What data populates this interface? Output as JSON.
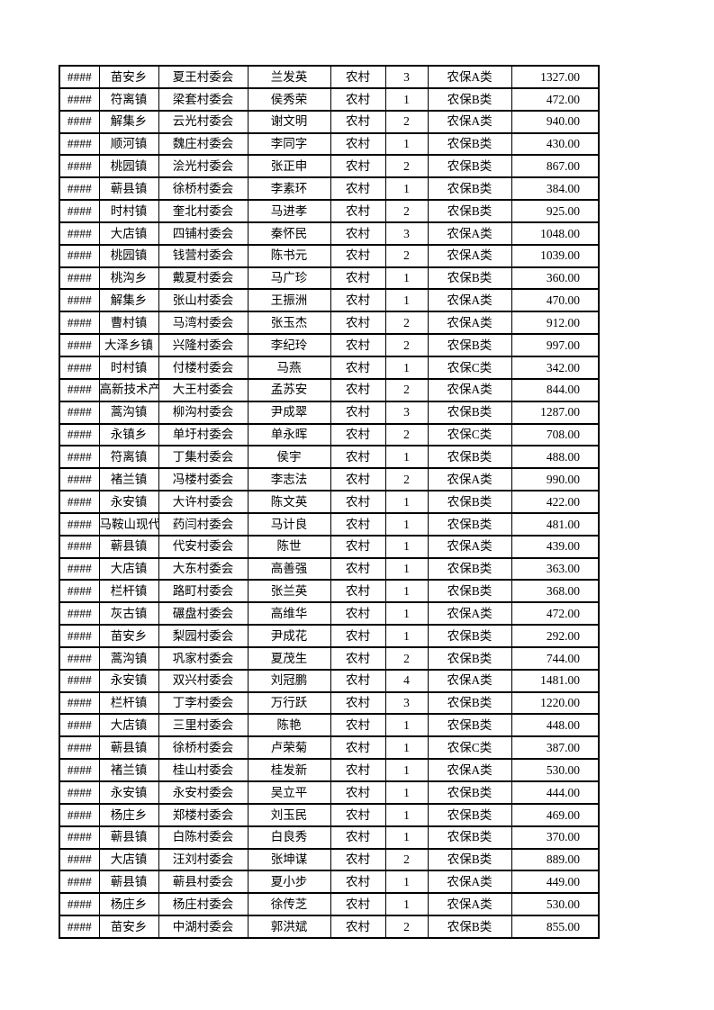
{
  "page": {
    "background": "#ffffff",
    "text_color": "#000000",
    "border_color": "#000000"
  },
  "table": {
    "overflow_marker": "####",
    "columns": [
      "overflow",
      "town",
      "village",
      "name",
      "area_type",
      "count",
      "category",
      "amount"
    ],
    "rows": [
      {
        "overflow": "####",
        "town": "苗安乡",
        "village": "夏王村委会",
        "name": "兰发英",
        "area_type": "农村",
        "count": "3",
        "category": "农保A类",
        "amount": "1327.00"
      },
      {
        "overflow": "####",
        "town": "符离镇",
        "village": "梁套村委会",
        "name": "侯秀荣",
        "area_type": "农村",
        "count": "1",
        "category": "农保B类",
        "amount": "472.00"
      },
      {
        "overflow": "####",
        "town": "解集乡",
        "village": "云光村委会",
        "name": "谢文明",
        "area_type": "农村",
        "count": "2",
        "category": "农保A类",
        "amount": "940.00"
      },
      {
        "overflow": "####",
        "town": "顺河镇",
        "village": "魏庄村委会",
        "name": "李同字",
        "area_type": "农村",
        "count": "1",
        "category": "农保B类",
        "amount": "430.00"
      },
      {
        "overflow": "####",
        "town": "桃园镇",
        "village": "浍光村委会",
        "name": "张正申",
        "area_type": "农村",
        "count": "2",
        "category": "农保B类",
        "amount": "867.00"
      },
      {
        "overflow": "####",
        "town": "蕲县镇",
        "village": "徐桥村委会",
        "name": "李素环",
        "area_type": "农村",
        "count": "1",
        "category": "农保B类",
        "amount": "384.00"
      },
      {
        "overflow": "####",
        "town": "时村镇",
        "village": "奎北村委会",
        "name": "马进孝",
        "area_type": "农村",
        "count": "2",
        "category": "农保B类",
        "amount": "925.00"
      },
      {
        "overflow": "####",
        "town": "大店镇",
        "village": "四铺村委会",
        "name": "秦怀民",
        "area_type": "农村",
        "count": "3",
        "category": "农保A类",
        "amount": "1048.00"
      },
      {
        "overflow": "####",
        "town": "桃园镇",
        "village": "钱营村委会",
        "name": "陈书元",
        "area_type": "农村",
        "count": "2",
        "category": "农保A类",
        "amount": "1039.00"
      },
      {
        "overflow": "####",
        "town": "桃沟乡",
        "village": "戴夏村委会",
        "name": "马广珍",
        "area_type": "农村",
        "count": "1",
        "category": "农保B类",
        "amount": "360.00"
      },
      {
        "overflow": "####",
        "town": "解集乡",
        "village": "张山村委会",
        "name": "王振洲",
        "area_type": "农村",
        "count": "1",
        "category": "农保A类",
        "amount": "470.00"
      },
      {
        "overflow": "####",
        "town": "曹村镇",
        "village": "马湾村委会",
        "name": "张玉杰",
        "area_type": "农村",
        "count": "2",
        "category": "农保A类",
        "amount": "912.00"
      },
      {
        "overflow": "####",
        "town": "大泽乡镇",
        "village": "兴隆村委会",
        "name": "李纪玲",
        "area_type": "农村",
        "count": "2",
        "category": "农保B类",
        "amount": "997.00"
      },
      {
        "overflow": "####",
        "town": "时村镇",
        "village": "付楼村委会",
        "name": "马燕",
        "area_type": "农村",
        "count": "1",
        "category": "农保C类",
        "amount": "342.00"
      },
      {
        "overflow": "####",
        "town": "高新技术产业园",
        "village": "大王村委会",
        "name": "孟苏安",
        "area_type": "农村",
        "count": "2",
        "category": "农保A类",
        "amount": "844.00"
      },
      {
        "overflow": "####",
        "town": "蒿沟镇",
        "village": "柳沟村委会",
        "name": "尹成翠",
        "area_type": "农村",
        "count": "3",
        "category": "农保B类",
        "amount": "1287.00"
      },
      {
        "overflow": "####",
        "town": "永镇乡",
        "village": "单圩村委会",
        "name": "单永晖",
        "area_type": "农村",
        "count": "2",
        "category": "农保C类",
        "amount": "708.00"
      },
      {
        "overflow": "####",
        "town": "符离镇",
        "village": "丁集村委会",
        "name": "侯宇",
        "area_type": "农村",
        "count": "1",
        "category": "农保B类",
        "amount": "488.00"
      },
      {
        "overflow": "####",
        "town": "褚兰镇",
        "village": "冯楼村委会",
        "name": "李志法",
        "area_type": "农村",
        "count": "2",
        "category": "农保A类",
        "amount": "990.00"
      },
      {
        "overflow": "####",
        "town": "永安镇",
        "village": "大许村委会",
        "name": "陈文英",
        "area_type": "农村",
        "count": "1",
        "category": "农保B类",
        "amount": "422.00"
      },
      {
        "overflow": "####",
        "town": "马鞍山现代产业园",
        "village": "药闫村委会",
        "name": "马计良",
        "area_type": "农村",
        "count": "1",
        "category": "农保B类",
        "amount": "481.00"
      },
      {
        "overflow": "####",
        "town": "蕲县镇",
        "village": "代安村委会",
        "name": "陈世",
        "area_type": "农村",
        "count": "1",
        "category": "农保A类",
        "amount": "439.00"
      },
      {
        "overflow": "####",
        "town": "大店镇",
        "village": "大东村委会",
        "name": "高善强",
        "area_type": "农村",
        "count": "1",
        "category": "农保B类",
        "amount": "363.00"
      },
      {
        "overflow": "####",
        "town": "栏杆镇",
        "village": "路町村委会",
        "name": "张兰英",
        "area_type": "农村",
        "count": "1",
        "category": "农保B类",
        "amount": "368.00"
      },
      {
        "overflow": "####",
        "town": "灰古镇",
        "village": "碾盘村委会",
        "name": "高维华",
        "area_type": "农村",
        "count": "1",
        "category": "农保A类",
        "amount": "472.00"
      },
      {
        "overflow": "####",
        "town": "苗安乡",
        "village": "梨园村委会",
        "name": "尹成花",
        "area_type": "农村",
        "count": "1",
        "category": "农保B类",
        "amount": "292.00"
      },
      {
        "overflow": "####",
        "town": "蒿沟镇",
        "village": "巩家村委会",
        "name": "夏茂生",
        "area_type": "农村",
        "count": "2",
        "category": "农保B类",
        "amount": "744.00"
      },
      {
        "overflow": "####",
        "town": "永安镇",
        "village": "双兴村委会",
        "name": "刘冠鹏",
        "area_type": "农村",
        "count": "4",
        "category": "农保A类",
        "amount": "1481.00"
      },
      {
        "overflow": "####",
        "town": "栏杆镇",
        "village": "丁李村委会",
        "name": "万行跃",
        "area_type": "农村",
        "count": "3",
        "category": "农保B类",
        "amount": "1220.00"
      },
      {
        "overflow": "####",
        "town": "大店镇",
        "village": "三里村委会",
        "name": "陈艳",
        "area_type": "农村",
        "count": "1",
        "category": "农保B类",
        "amount": "448.00"
      },
      {
        "overflow": "####",
        "town": "蕲县镇",
        "village": "徐桥村委会",
        "name": "卢荣菊",
        "area_type": "农村",
        "count": "1",
        "category": "农保C类",
        "amount": "387.00"
      },
      {
        "overflow": "####",
        "town": "褚兰镇",
        "village": "桂山村委会",
        "name": "桂发新",
        "area_type": "农村",
        "count": "1",
        "category": "农保A类",
        "amount": "530.00"
      },
      {
        "overflow": "####",
        "town": "永安镇",
        "village": "永安村委会",
        "name": "吴立平",
        "area_type": "农村",
        "count": "1",
        "category": "农保B类",
        "amount": "444.00"
      },
      {
        "overflow": "####",
        "town": "杨庄乡",
        "village": "郑楼村委会",
        "name": "刘玉民",
        "area_type": "农村",
        "count": "1",
        "category": "农保B类",
        "amount": "469.00"
      },
      {
        "overflow": "####",
        "town": "蕲县镇",
        "village": "白陈村委会",
        "name": "白良秀",
        "area_type": "农村",
        "count": "1",
        "category": "农保B类",
        "amount": "370.00"
      },
      {
        "overflow": "####",
        "town": "大店镇",
        "village": "汪刘村委会",
        "name": "张坤谋",
        "area_type": "农村",
        "count": "2",
        "category": "农保B类",
        "amount": "889.00"
      },
      {
        "overflow": "####",
        "town": "蕲县镇",
        "village": "蕲县村委会",
        "name": "夏小步",
        "area_type": "农村",
        "count": "1",
        "category": "农保A类",
        "amount": "449.00"
      },
      {
        "overflow": "####",
        "town": "杨庄乡",
        "village": "杨庄村委会",
        "name": "徐传芝",
        "area_type": "农村",
        "count": "1",
        "category": "农保A类",
        "amount": "530.00"
      },
      {
        "overflow": "####",
        "town": "苗安乡",
        "village": "中湖村委会",
        "name": "郭洪斌",
        "area_type": "农村",
        "count": "2",
        "category": "农保B类",
        "amount": "855.00"
      }
    ]
  }
}
